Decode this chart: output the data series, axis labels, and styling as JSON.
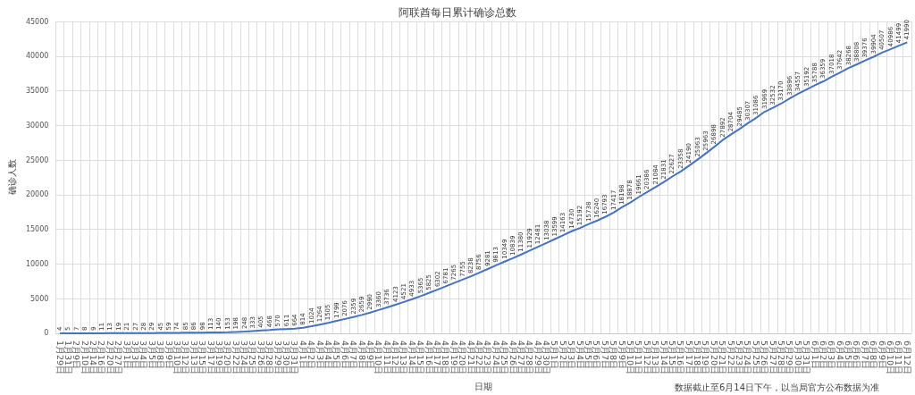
{
  "chart_data": {
    "type": "line",
    "title": "阿联酋每日累计确诊总数",
    "xlabel": "日期",
    "ylabel": "确诊人数",
    "annotations": [
      "数据截止至6月14日下午，以当局官方公布数据为准"
    ],
    "categories": [
      "1月29日",
      "1月31日",
      "2月9日",
      "2月10日",
      "2月14日",
      "2月16日",
      "2月20日",
      "2月27日",
      "3月1日",
      "3月3日",
      "3月4日",
      "3月5日",
      "3月8日",
      "3月9日",
      "3月10日",
      "3月12日",
      "3月13日",
      "3月15日",
      "3月17日",
      "3月19日",
      "3月20日",
      "3月22日",
      "3月24日",
      "3月25日",
      "3月26日",
      "3月28日",
      "3月29日",
      "3月30日",
      "3月31日",
      "4月1日",
      "4月2日",
      "4月3日",
      "4月4日",
      "4月5日",
      "4月6日",
      "4月7日",
      "4月8日",
      "4月9日",
      "4月10日",
      "4月11日",
      "4月12日",
      "4月13日",
      "4月14日",
      "4月15日",
      "4月16日",
      "4月17日",
      "4月18日",
      "4月19日",
      "4月20日",
      "4月21日",
      "4月22日",
      "4月23日",
      "4月24日",
      "4月25日",
      "4月26日",
      "4月27日",
      "4月28日",
      "4月29日",
      "4月30日",
      "5月1日",
      "5月2日",
      "5月3日",
      "5月4日",
      "5月5日",
      "5月6日",
      "5月7日",
      "5月8日",
      "5月9日",
      "5月10日",
      "5月11日",
      "5月12日",
      "5月13日",
      "5月14日",
      "5月15日",
      "5月16日",
      "5月17日",
      "5月18日",
      "5月19日",
      "5月20日",
      "5月21日",
      "5月22日",
      "5月23日",
      "5月24日",
      "5月25日",
      "5月26日",
      "5月27日",
      "5月28日",
      "5月29日",
      "5月30日",
      "5月31日",
      "6月1日",
      "6月2日",
      "6月3日",
      "6月4日",
      "6月5日",
      "6月6日",
      "6月7日",
      "6月8日",
      "6月9日",
      "6月10日",
      "6月11日",
      "6月12日"
    ],
    "series": [
      {
        "color": "#4472c4",
        "values": [
          4,
          5,
          7,
          8,
          9,
          11,
          13,
          19,
          21,
          27,
          28,
          29,
          45,
          59,
          74,
          85,
          86,
          98,
          113,
          140,
          153,
          198,
          248,
          333,
          405,
          468,
          570,
          611,
          664,
          814,
          1024,
          1264,
          1505,
          1799,
          2076,
          2359,
          2659,
          2990,
          3360,
          3736,
          4123,
          4521,
          4933,
          5365,
          5825,
          6302,
          6781,
          7265,
          7755,
          8238,
          8756,
          9281,
          9813,
          10349,
          10839,
          11380,
          11929,
          12481,
          13038,
          13599,
          14163,
          14730,
          15192,
          15738,
          16240,
          16793,
          17417,
          18198,
          18878,
          19661,
          20386,
          21084,
          21831,
          22627,
          23358,
          24190,
          25063,
          25963,
          26898,
          27892,
          28704,
          29485,
          30307,
          31086,
          31969,
          32532,
          33170,
          33896,
          34557,
          35192,
          35788,
          36359,
          37018,
          37642,
          38268,
          38808,
          39376,
          39904,
          40507,
          40986,
          41499,
          41990
        ]
      }
    ],
    "ylim": [
      0,
      45000
    ],
    "yticks": [
      0,
      5000,
      10000,
      15000,
      20000,
      25000,
      30000,
      35000,
      40000,
      45000
    ],
    "grid": true,
    "data_labels": true,
    "marker": "none",
    "line_style": "solid"
  }
}
